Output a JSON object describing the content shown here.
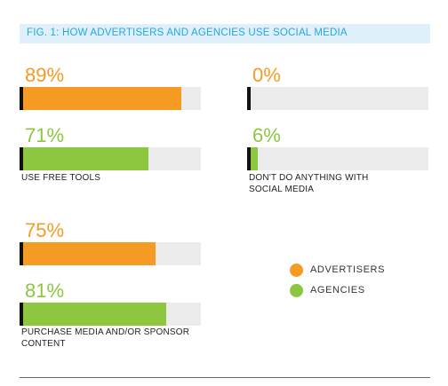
{
  "chart_data": {
    "type": "bar",
    "title": "FIG. 1: HOW ADVERTISERS AND AGENCIES USE SOCIAL MEDIA",
    "xlim": [
      0,
      100
    ],
    "grid": false,
    "legend_placement": "right",
    "categories": [
      "USE FREE TOOLS",
      "DON'T DO ANYTHING WITH SOCIAL MEDIA",
      "PURCHASE MEDIA AND/OR SPONSOR CONTENT"
    ],
    "series": [
      {
        "name": "ADVERTISERS",
        "color": "#f59a23",
        "values": [
          89,
          0,
          75
        ],
        "labels": [
          "89%",
          "0%",
          "75%"
        ]
      },
      {
        "name": "AGENCIES",
        "color": "#8dc63f",
        "values": [
          71,
          6,
          81
        ],
        "labels": [
          "71%",
          "6%",
          "81%"
        ]
      }
    ]
  }
}
